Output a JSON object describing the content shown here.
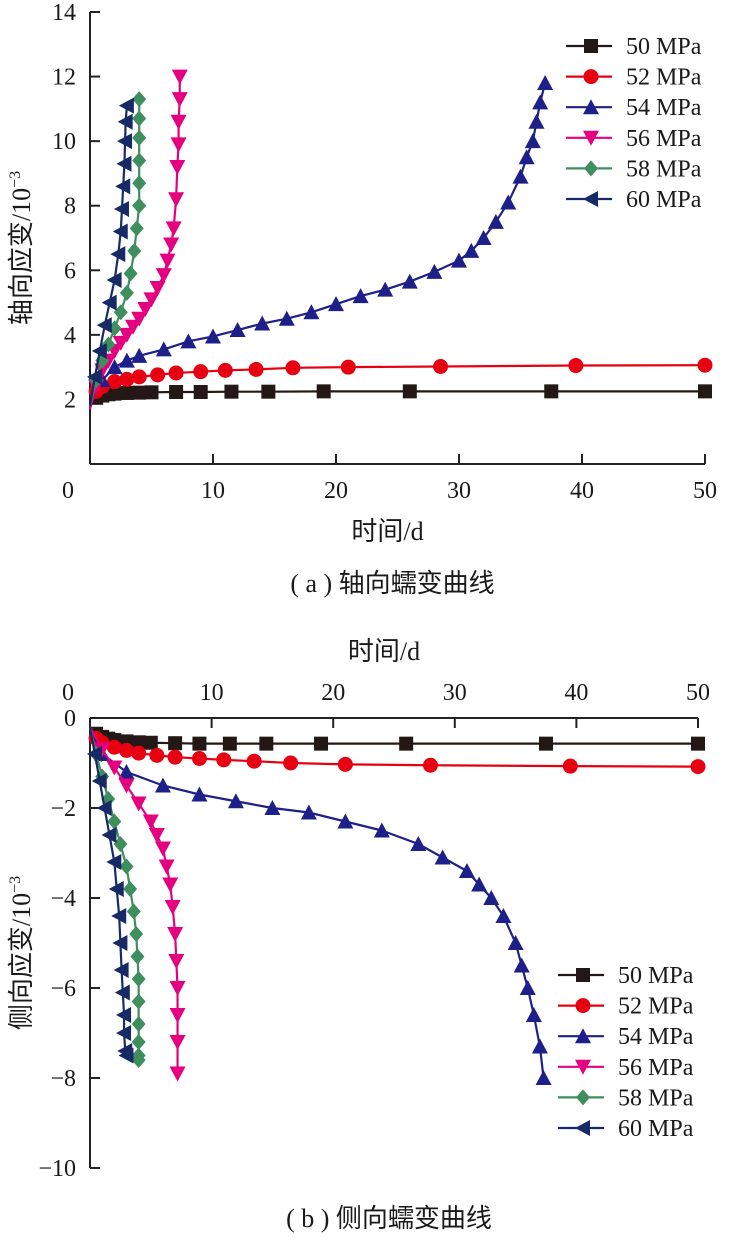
{
  "chart_data": [
    {
      "type": "line",
      "caption": "( a ) 轴向蠕变曲线",
      "xlabel": "时间/d",
      "ylabel": "轴向应变/10",
      "ylabel_exponent": "−3",
      "xlim": [
        0,
        50
      ],
      "ylim": [
        0,
        14
      ],
      "xticks": [
        0,
        10,
        20,
        30,
        40,
        50
      ],
      "yticks": [
        2,
        4,
        6,
        8,
        10,
        12,
        14
      ],
      "legend_position": "top-right",
      "series": [
        {
          "name": "50 MPa",
          "color": "#231815",
          "marker": "square",
          "x": [
            0,
            0.5,
            1,
            1.5,
            2,
            3,
            4,
            5,
            7,
            9,
            11.5,
            14.5,
            19,
            26,
            37.5,
            50
          ],
          "y": [
            1.8,
            2.05,
            2.12,
            2.16,
            2.18,
            2.2,
            2.21,
            2.22,
            2.23,
            2.23,
            2.24,
            2.24,
            2.25,
            2.25,
            2.25,
            2.25
          ]
        },
        {
          "name": "52 MPa",
          "color": "#e60012",
          "marker": "circle",
          "x": [
            0,
            0.5,
            1,
            2,
            3,
            4,
            5.5,
            7,
            9,
            11,
            13.5,
            16.5,
            21,
            28.5,
            39.5,
            50
          ],
          "y": [
            1.8,
            2.25,
            2.4,
            2.55,
            2.62,
            2.7,
            2.76,
            2.82,
            2.86,
            2.9,
            2.93,
            2.98,
            3.0,
            3.02,
            3.05,
            3.06
          ]
        },
        {
          "name": "54 MPa",
          "color": "#1d2088",
          "marker": "triangle-up",
          "x": [
            0,
            1,
            2,
            3,
            4,
            6,
            8,
            10,
            12,
            14,
            16,
            18,
            20,
            22,
            24,
            26,
            28,
            30,
            31,
            32,
            33,
            34,
            35,
            35.5,
            36,
            36.3,
            36.6,
            37
          ],
          "y": [
            1.9,
            2.6,
            3.0,
            3.2,
            3.35,
            3.55,
            3.8,
            3.95,
            4.15,
            4.35,
            4.5,
            4.7,
            4.95,
            5.2,
            5.4,
            5.65,
            5.95,
            6.3,
            6.6,
            7.0,
            7.5,
            8.1,
            8.9,
            9.5,
            10.0,
            10.6,
            11.2,
            11.8
          ]
        },
        {
          "name": "56 MPa",
          "color": "#e4007f",
          "marker": "triangle-down",
          "x": [
            0,
            0.5,
            1,
            1.5,
            2,
            2.5,
            3,
            3.5,
            4,
            4.5,
            5,
            5.5,
            6,
            6.3,
            6.6,
            6.8,
            7,
            7.1,
            7.2,
            7.2,
            7.3,
            7.3
          ],
          "y": [
            1.7,
            2.4,
            2.9,
            3.2,
            3.5,
            3.75,
            4.0,
            4.25,
            4.5,
            4.8,
            5.1,
            5.45,
            5.85,
            6.3,
            6.8,
            7.3,
            8.2,
            9.2,
            9.9,
            10.6,
            11.3,
            12.0
          ]
        },
        {
          "name": "58 MPa",
          "color": "#3e8e5e",
          "marker": "diamond",
          "x": [
            0,
            0.5,
            1,
            1.5,
            2,
            2.5,
            3,
            3.3,
            3.6,
            3.8,
            4,
            4,
            4,
            4,
            4,
            4
          ],
          "y": [
            1.8,
            2.6,
            3.2,
            3.7,
            4.2,
            4.7,
            5.3,
            5.9,
            6.6,
            7.3,
            8.0,
            8.7,
            9.4,
            10.1,
            10.7,
            11.3
          ]
        },
        {
          "name": "60 MPa",
          "color": "#172a66",
          "marker": "triangle-left",
          "x": [
            0,
            0.4,
            0.8,
            1.2,
            1.6,
            2,
            2.3,
            2.5,
            2.6,
            2.7,
            2.8,
            2.85,
            2.9,
            3
          ],
          "y": [
            1.8,
            2.7,
            3.5,
            4.3,
            5.0,
            5.7,
            6.5,
            7.2,
            7.9,
            8.6,
            9.3,
            10.0,
            10.6,
            11.1
          ]
        }
      ]
    },
    {
      "type": "line",
      "caption": "( b ) 侧向蠕变曲线",
      "xlabel": "时间/d",
      "ylabel": "侧向应变/10",
      "ylabel_exponent": "−3",
      "xlim": [
        0,
        50
      ],
      "ylim": [
        -10,
        0
      ],
      "xticks": [
        0,
        10,
        20,
        30,
        40,
        50
      ],
      "yticks": [
        0,
        -2,
        -4,
        -6,
        -8,
        -10
      ],
      "legend_position": "bottom-right",
      "series": [
        {
          "name": "50 MPa",
          "color": "#231815",
          "marker": "square",
          "x": [
            0,
            0.5,
            1,
            1.5,
            2,
            3,
            4,
            5,
            7,
            9,
            11.5,
            14.5,
            19,
            26,
            37.5,
            50
          ],
          "y": [
            -0.2,
            -0.35,
            -0.42,
            -0.46,
            -0.49,
            -0.52,
            -0.54,
            -0.55,
            -0.56,
            -0.57,
            -0.57,
            -0.57,
            -0.57,
            -0.57,
            -0.57,
            -0.57
          ]
        },
        {
          "name": "52 MPa",
          "color": "#e60012",
          "marker": "circle",
          "x": [
            0,
            0.5,
            1,
            2,
            3,
            4,
            5.5,
            7,
            9,
            11,
            13.5,
            16.5,
            21,
            28,
            39.5,
            50
          ],
          "y": [
            -0.2,
            -0.45,
            -0.55,
            -0.65,
            -0.72,
            -0.78,
            -0.83,
            -0.87,
            -0.9,
            -0.93,
            -0.96,
            -1.0,
            -1.03,
            -1.05,
            -1.07,
            -1.08
          ]
        },
        {
          "name": "54 MPa",
          "color": "#1d2088",
          "marker": "triangle-up",
          "x": [
            0,
            1,
            3,
            6,
            9,
            12,
            15,
            18,
            21,
            24,
            27,
            29,
            31,
            32,
            33,
            34,
            35,
            35.5,
            36,
            36.5,
            37,
            37.3
          ],
          "y": [
            -0.2,
            -0.8,
            -1.2,
            -1.5,
            -1.7,
            -1.85,
            -2.0,
            -2.1,
            -2.3,
            -2.5,
            -2.8,
            -3.1,
            -3.4,
            -3.7,
            -4.0,
            -4.4,
            -5.0,
            -5.5,
            -6.0,
            -6.6,
            -7.3,
            -8.0
          ]
        },
        {
          "name": "56 MPa",
          "color": "#e4007f",
          "marker": "triangle-down",
          "x": [
            0,
            1,
            2,
            3,
            4,
            5,
            5.5,
            6,
            6.3,
            6.6,
            6.8,
            7,
            7.1,
            7.2,
            7.2,
            7.2,
            7.2
          ],
          "y": [
            -0.2,
            -0.7,
            -1.1,
            -1.5,
            -1.9,
            -2.3,
            -2.6,
            -2.9,
            -3.3,
            -3.7,
            -4.2,
            -4.8,
            -5.4,
            -6.0,
            -6.6,
            -7.2,
            -7.9
          ]
        },
        {
          "name": "58 MPa",
          "color": "#3e8e5e",
          "marker": "diamond",
          "x": [
            0,
            0.5,
            1,
            1.5,
            2,
            2.5,
            3,
            3.3,
            3.6,
            3.8,
            3.9,
            4,
            4,
            4,
            4,
            4,
            4
          ],
          "y": [
            -0.2,
            -0.8,
            -1.3,
            -1.8,
            -2.3,
            -2.8,
            -3.3,
            -3.8,
            -4.3,
            -4.8,
            -5.3,
            -5.8,
            -6.3,
            -6.8,
            -7.2,
            -7.5,
            -7.6
          ]
        },
        {
          "name": "60 MPa",
          "color": "#172a66",
          "marker": "triangle-left",
          "x": [
            0,
            0.4,
            0.8,
            1.2,
            1.6,
            2,
            2.2,
            2.4,
            2.5,
            2.6,
            2.7,
            2.8,
            2.8,
            2.9,
            3
          ],
          "y": [
            -0.2,
            -0.8,
            -1.4,
            -2.0,
            -2.6,
            -3.2,
            -3.8,
            -4.4,
            -5.0,
            -5.6,
            -6.1,
            -6.6,
            -7.0,
            -7.4,
            -7.5
          ]
        }
      ]
    }
  ]
}
